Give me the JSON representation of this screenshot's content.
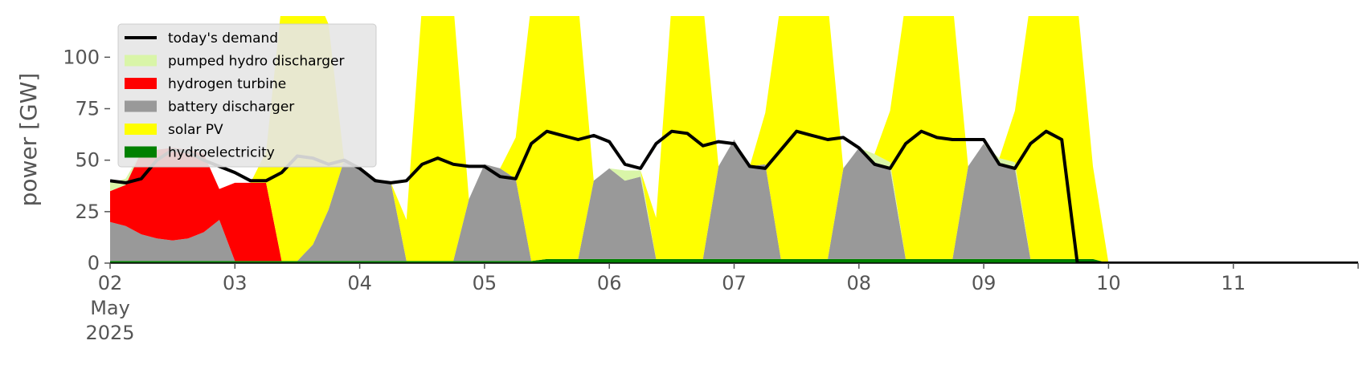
{
  "chart_data": {
    "type": "area",
    "title": "",
    "xlabel": "",
    "ylabel": "power [GW]",
    "ylim": [
      0,
      120
    ],
    "yticks": [
      0,
      25,
      50,
      75,
      100
    ],
    "xlim": [
      "2025-05-02T00:00",
      "2025-05-12T00:00"
    ],
    "xtick_labels": [
      {
        "at": "2025-05-02",
        "lines": [
          "02",
          "May",
          "2025"
        ]
      },
      {
        "at": "2025-05-03",
        "lines": [
          "03"
        ]
      },
      {
        "at": "2025-05-04",
        "lines": [
          "04"
        ]
      },
      {
        "at": "2025-05-05",
        "lines": [
          "05"
        ]
      },
      {
        "at": "2025-05-06",
        "lines": [
          "06"
        ]
      },
      {
        "at": "2025-05-07",
        "lines": [
          "07"
        ]
      },
      {
        "at": "2025-05-08",
        "lines": [
          "08"
        ]
      },
      {
        "at": "2025-05-09",
        "lines": [
          "09"
        ]
      },
      {
        "at": "2025-05-10",
        "lines": [
          "10"
        ]
      },
      {
        "at": "2025-05-11",
        "lines": [
          "11"
        ]
      }
    ],
    "grid": false,
    "legend_position": "top-left",
    "x": [
      "2025-05-02T00:00",
      "2025-05-02T03:00",
      "2025-05-02T06:00",
      "2025-05-02T09:00",
      "2025-05-02T12:00",
      "2025-05-02T15:00",
      "2025-05-02T18:00",
      "2025-05-02T21:00",
      "2025-05-03T00:00",
      "2025-05-03T03:00",
      "2025-05-03T06:00",
      "2025-05-03T09:00",
      "2025-05-03T12:00",
      "2025-05-03T15:00",
      "2025-05-03T18:00",
      "2025-05-03T21:00",
      "2025-05-04T00:00",
      "2025-05-04T03:00",
      "2025-05-04T06:00",
      "2025-05-04T09:00",
      "2025-05-04T12:00",
      "2025-05-04T15:00",
      "2025-05-04T18:00",
      "2025-05-04T21:00",
      "2025-05-05T00:00",
      "2025-05-05T03:00",
      "2025-05-05T06:00",
      "2025-05-05T09:00",
      "2025-05-05T12:00",
      "2025-05-05T15:00",
      "2025-05-05T18:00",
      "2025-05-05T21:00",
      "2025-05-06T00:00",
      "2025-05-06T03:00",
      "2025-05-06T06:00",
      "2025-05-06T09:00",
      "2025-05-06T12:00",
      "2025-05-06T15:00",
      "2025-05-06T18:00",
      "2025-05-06T21:00",
      "2025-05-07T00:00",
      "2025-05-07T03:00",
      "2025-05-07T06:00",
      "2025-05-07T09:00",
      "2025-05-07T12:00",
      "2025-05-07T15:00",
      "2025-05-07T18:00",
      "2025-05-07T21:00",
      "2025-05-08T00:00",
      "2025-05-08T03:00",
      "2025-05-08T06:00",
      "2025-05-08T09:00",
      "2025-05-08T12:00",
      "2025-05-08T15:00",
      "2025-05-08T18:00",
      "2025-05-08T21:00",
      "2025-05-09T00:00",
      "2025-05-09T03:00",
      "2025-05-09T06:00",
      "2025-05-09T09:00",
      "2025-05-09T12:00",
      "2025-05-09T15:00",
      "2025-05-09T18:00",
      "2025-05-09T21:00",
      "2025-05-10T00:00",
      "2025-05-10T03:00",
      "2025-05-10T06:00",
      "2025-05-10T09:00",
      "2025-05-10T12:00",
      "2025-05-10T15:00",
      "2025-05-10T18:00",
      "2025-05-10T21:00",
      "2025-05-11T00:00",
      "2025-05-11T03:00",
      "2025-05-11T06:00",
      "2025-05-11T09:00",
      "2025-05-11T12:00",
      "2025-05-11T15:00",
      "2025-05-11T18:00",
      "2025-05-11T21:00",
      "2025-05-12T00:00"
    ],
    "stack_order": [
      "hydroelectricity",
      "battery discharger",
      "hydrogen turbine",
      "pumped hydro discharger",
      "solar PV"
    ],
    "series": [
      {
        "name": "hydroelectricity",
        "color": "#008000",
        "kind": "area",
        "values": [
          1,
          1,
          1,
          1,
          1,
          1,
          1,
          1,
          1,
          1,
          1,
          1,
          1,
          1,
          1,
          1,
          1,
          1,
          1,
          1,
          1,
          1,
          1,
          1,
          1,
          1,
          1,
          1,
          2,
          2,
          2,
          2,
          2,
          2,
          2,
          2,
          2,
          2,
          2,
          2,
          2,
          2,
          2,
          2,
          2,
          2,
          2,
          2,
          2,
          2,
          2,
          2,
          2,
          2,
          2,
          2,
          2,
          2,
          2,
          2,
          2,
          2,
          2,
          2,
          0,
          0,
          0,
          0,
          0,
          0,
          0,
          0,
          0,
          0,
          0,
          0,
          0,
          0,
          0,
          0,
          0
        ]
      },
      {
        "name": "battery discharger",
        "color": "#999999",
        "kind": "area",
        "values": [
          19,
          17,
          13,
          11,
          10,
          11,
          14,
          20,
          0,
          0,
          0,
          0,
          0,
          8,
          25,
          49,
          46,
          40,
          38,
          0,
          0,
          0,
          0,
          30,
          47,
          45,
          40,
          0,
          0,
          0,
          0,
          38,
          44,
          38,
          40,
          0,
          0,
          0,
          0,
          45,
          58,
          45,
          46,
          0,
          0,
          0,
          0,
          44,
          54,
          47,
          44,
          0,
          0,
          0,
          0,
          45,
          56,
          46,
          44,
          0,
          0,
          0,
          0,
          0,
          0,
          0,
          0,
          0,
          0,
          0,
          0,
          0,
          0,
          0,
          0,
          0,
          0,
          0,
          0,
          0,
          0
        ]
      },
      {
        "name": "hydrogen turbine",
        "color": "#ff0000",
        "kind": "area",
        "values": [
          15,
          20,
          40,
          43,
          45,
          43,
          38,
          15,
          38,
          38,
          38,
          0,
          0,
          0,
          0,
          0,
          0,
          0,
          0,
          0,
          0,
          0,
          0,
          0,
          0,
          0,
          0,
          0,
          0,
          0,
          0,
          0,
          0,
          0,
          0,
          0,
          0,
          0,
          0,
          0,
          0,
          0,
          0,
          0,
          0,
          0,
          0,
          0,
          0,
          0,
          0,
          0,
          0,
          0,
          0,
          0,
          0,
          0,
          0,
          0,
          0,
          0,
          0,
          0,
          0,
          0,
          0,
          0,
          0,
          0,
          0,
          0,
          0,
          0,
          0,
          0,
          0,
          0,
          0,
          0,
          0
        ]
      },
      {
        "name": "pumped hydro discharger",
        "color": "#d9f5a8",
        "kind": "area",
        "values": [
          4,
          3,
          0,
          0,
          0,
          0,
          0,
          0,
          0,
          0,
          0,
          0,
          0,
          0,
          0,
          0,
          0,
          0,
          0,
          0,
          0,
          0,
          0,
          0,
          0,
          0,
          0,
          0,
          0,
          0,
          0,
          0,
          0,
          5,
          3,
          0,
          0,
          0,
          0,
          0,
          0,
          0,
          0,
          0,
          0,
          0,
          0,
          0,
          0,
          4,
          3,
          0,
          0,
          0,
          0,
          0,
          0,
          3,
          3,
          0,
          0,
          0,
          0,
          0,
          0,
          0,
          0,
          0,
          0,
          0,
          0,
          0,
          0,
          0,
          0,
          0,
          0,
          0,
          0,
          0,
          0
        ]
      },
      {
        "name": "solar PV",
        "color": "#ffff00",
        "kind": "area",
        "values": [
          0,
          0,
          0,
          0,
          0,
          0,
          0,
          0,
          0,
          0,
          15,
          125,
          125,
          125,
          90,
          0,
          0,
          0,
          0,
          20,
          125,
          125,
          125,
          0,
          0,
          0,
          20,
          125,
          125,
          125,
          125,
          0,
          0,
          0,
          0,
          20,
          125,
          125,
          125,
          0,
          0,
          0,
          25,
          125,
          125,
          125,
          125,
          0,
          0,
          0,
          25,
          125,
          125,
          125,
          125,
          0,
          0,
          0,
          25,
          125,
          125,
          125,
          125,
          45,
          0,
          0,
          0,
          0,
          0,
          0,
          0,
          0,
          0,
          0,
          0,
          0,
          0,
          0,
          0,
          0,
          0
        ]
      },
      {
        "name": "today's demand",
        "color": "#000000",
        "kind": "line",
        "values": [
          40,
          39,
          41,
          50,
          55,
          54,
          50,
          47,
          44,
          40,
          40,
          44,
          52,
          51,
          48,
          50,
          46,
          40,
          39,
          40,
          48,
          51,
          48,
          47,
          47,
          42,
          41,
          58,
          64,
          62,
          60,
          62,
          59,
          48,
          46,
          58,
          64,
          63,
          57,
          59,
          58,
          47,
          46,
          55,
          64,
          62,
          60,
          61,
          56,
          48,
          46,
          58,
          64,
          61,
          60,
          60,
          60,
          48,
          46,
          58,
          64,
          60,
          0,
          0,
          0,
          0,
          0,
          0,
          0,
          0,
          0,
          0,
          0,
          0,
          0,
          0,
          0,
          0,
          0,
          0,
          0
        ]
      }
    ]
  },
  "legend": [
    {
      "label": "today's demand",
      "color": "#000000",
      "kind": "line"
    },
    {
      "label": "pumped hydro discharger",
      "color": "#d9f5a8",
      "kind": "area"
    },
    {
      "label": "hydrogen turbine",
      "color": "#ff0000",
      "kind": "area"
    },
    {
      "label": "battery discharger",
      "color": "#999999",
      "kind": "area"
    },
    {
      "label": "solar PV",
      "color": "#ffff00",
      "kind": "area"
    },
    {
      "label": "hydroelectricity",
      "color": "#008000",
      "kind": "area"
    }
  ]
}
